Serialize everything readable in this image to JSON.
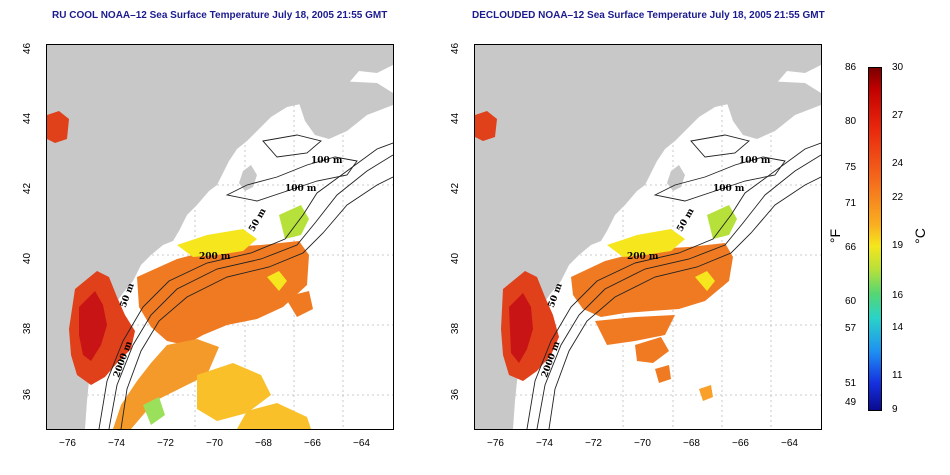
{
  "panels": [
    {
      "title": "RU COOL NOAA–12 Sea Surface Temperature July 18, 2005 21:55 GMT"
    },
    {
      "title": "DECLOUDED NOAA–12 Sea Surface Temperature July 18, 2005 21:55 GMT"
    }
  ],
  "map": {
    "x_ticks": [
      "−76",
      "−74",
      "−72",
      "−70",
      "−68",
      "−66",
      "−64"
    ],
    "y_ticks": [
      "46",
      "44",
      "42",
      "40",
      "38",
      "36"
    ],
    "lon_range": [
      -77,
      -63
    ],
    "lat_range": [
      35,
      46
    ],
    "contour_labels": [
      "100 m",
      "100 m",
      "50 m",
      "200 m",
      "50 m",
      "2000 m"
    ]
  },
  "colorbar": {
    "fahrenheit_labels": [
      "86",
      "80",
      "75",
      "71",
      "66",
      "60",
      "57",
      "51",
      "49"
    ],
    "celsius_labels": [
      "30",
      "27",
      "24",
      "22",
      "19",
      "16",
      "14",
      "11",
      "9"
    ],
    "fahrenheit_unit": "°F",
    "celsius_unit": "°C",
    "range_celsius": [
      9,
      30
    ]
  },
  "colors": {
    "land": "#c8c8c8",
    "ocean_nodata": "#ffffff",
    "title": "#1b1b8f",
    "warm": "#e0401a",
    "hot": "#c81414",
    "mid": "#f39a2a",
    "cool": "#f5e61d"
  }
}
